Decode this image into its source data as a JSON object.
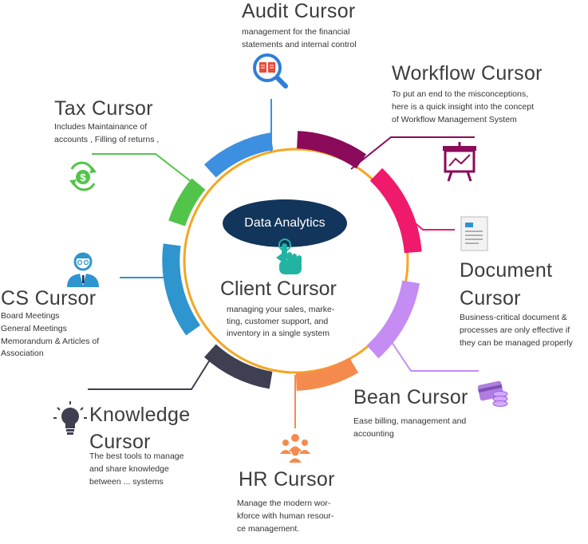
{
  "center": {
    "badge": "Data Analytics",
    "title": "Client Cursor",
    "desc": "managing your sales, marke-\nting, customer support, and\ninventory in a single system"
  },
  "nodes": {
    "audit": {
      "title": "Audit Cursor",
      "desc": "management for the financial\nstatements and internal control",
      "color": "#3d8fe0",
      "icon": "book-magnifier-icon"
    },
    "workflow": {
      "title": "Workflow Cursor",
      "desc": "To put an end to the misconceptions,\nhere is a quick insight into the concept\nof Workflow Management System",
      "color": "#8b0a5a",
      "icon": "presentation-chart-icon"
    },
    "document": {
      "title": "Document\nCursor",
      "desc": "Business-critical document &\nprocesses are only effective if\nthey can be managed properly",
      "color": "#ef1a6b",
      "icon": "document-icon"
    },
    "bean": {
      "title": "Bean Cursor",
      "desc": "Ease billing, management and\naccounting",
      "color": "#c58cf3",
      "icon": "credit-card-coins-icon"
    },
    "hr": {
      "title": "HR Cursor",
      "desc": "Manage the modern wor-\nkforce with  human resour-\nce management.",
      "color": "#f58a4d",
      "icon": "people-group-icon"
    },
    "knowledge": {
      "title": "Knowledge\nCursor",
      "desc": "The best tools to manage\nand share knowledge\nbetween ... systems",
      "color": "#3f3f52",
      "icon": "lightbulb-icon"
    },
    "cs": {
      "title": "CS Cursor",
      "desc": "Board Meetings\nGeneral Meetings\nMemorandum & Articles of\nAssociation",
      "color": "#2e95cf",
      "icon": "businessman-icon"
    },
    "tax": {
      "title": "Tax Cursor",
      "desc": "Includes Maintainance of\naccounts , Filling of returns ,",
      "color": "#53c44a",
      "icon": "dollar-cycle-icon"
    }
  },
  "colors": {
    "ring": "#f5a623",
    "badge_bg": "#12355b",
    "hand": "#22b3a3"
  }
}
